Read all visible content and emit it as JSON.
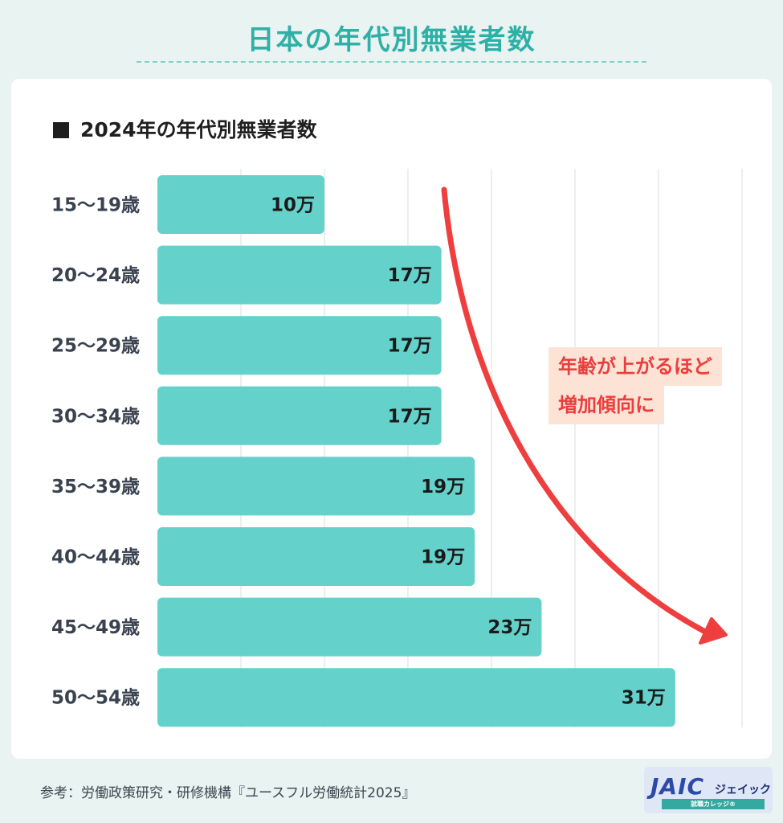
{
  "header": {
    "title": "日本の年代別無業者数"
  },
  "chart_data": {
    "type": "bar",
    "orientation": "horizontal",
    "title": "2024年の年代別無業者数",
    "categories": [
      "15〜19歳",
      "20〜24歳",
      "25〜29歳",
      "30〜34歳",
      "35〜39歳",
      "40〜44歳",
      "45〜49歳",
      "50〜54歳"
    ],
    "values": [
      10,
      17,
      17,
      17,
      19,
      19,
      23,
      31
    ],
    "value_labels": [
      "10万",
      "17万",
      "17万",
      "17万",
      "19万",
      "19万",
      "23万",
      "31万"
    ],
    "unit": "万",
    "xlim": [
      0,
      35
    ],
    "grid": true,
    "bar_color": "#64d1cb"
  },
  "callout": {
    "lines": [
      "年齢が上がるほど",
      "増加傾向に"
    ],
    "color": "#ec3d3d",
    "arrow": "trend-down-right"
  },
  "footer": {
    "source": "参考：労働政策研究・研修機構『ユースフル労働統計2025』"
  },
  "logo": {
    "mark": "JAIC",
    "kana": "ジェイック",
    "sub": "就職カレッジ®"
  }
}
